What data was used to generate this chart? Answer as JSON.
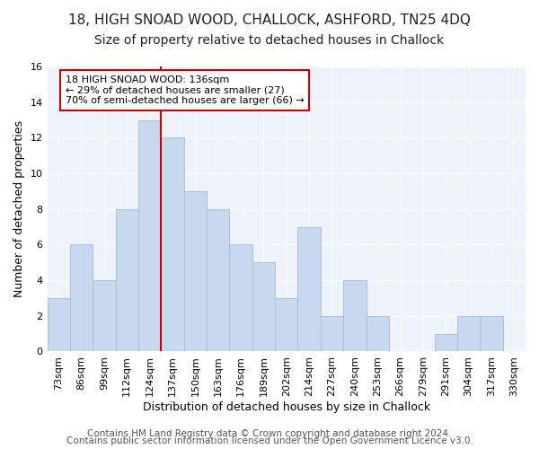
{
  "title": "18, HIGH SNOAD WOOD, CHALLOCK, ASHFORD, TN25 4DQ",
  "subtitle": "Size of property relative to detached houses in Challock",
  "xlabel": "Distribution of detached houses by size in Challock",
  "ylabel": "Number of detached properties",
  "bar_labels": [
    "73sqm",
    "86sqm",
    "99sqm",
    "112sqm",
    "124sqm",
    "137sqm",
    "150sqm",
    "163sqm",
    "176sqm",
    "189sqm",
    "202sqm",
    "214sqm",
    "227sqm",
    "240sqm",
    "253sqm",
    "266sqm",
    "279sqm",
    "291sqm",
    "304sqm",
    "317sqm",
    "330sqm"
  ],
  "bar_values": [
    3,
    6,
    4,
    8,
    13,
    12,
    9,
    8,
    6,
    5,
    3,
    7,
    2,
    4,
    2,
    0,
    0,
    1,
    2,
    2,
    0
  ],
  "bar_color": "#c8d8ee",
  "bar_edge_color": "#aabdd8",
  "ref_line_index": 4.5,
  "ref_line_label": "18 HIGH SNOAD WOOD: 136sqm",
  "annotation_line1": "← 29% of detached houses are smaller (27)",
  "annotation_line2": "70% of semi-detached houses are larger (66) →",
  "ref_line_color": "#cc0000",
  "ylim": [
    0,
    16
  ],
  "yticks": [
    0,
    2,
    4,
    6,
    8,
    10,
    12,
    14,
    16
  ],
  "footer1": "Contains HM Land Registry data © Crown copyright and database right 2024.",
  "footer2": "Contains public sector information licensed under the Open Government Licence v3.0.",
  "title_fontsize": 11,
  "subtitle_fontsize": 10,
  "axis_label_fontsize": 9,
  "tick_fontsize": 8,
  "footer_fontsize": 7.5
}
